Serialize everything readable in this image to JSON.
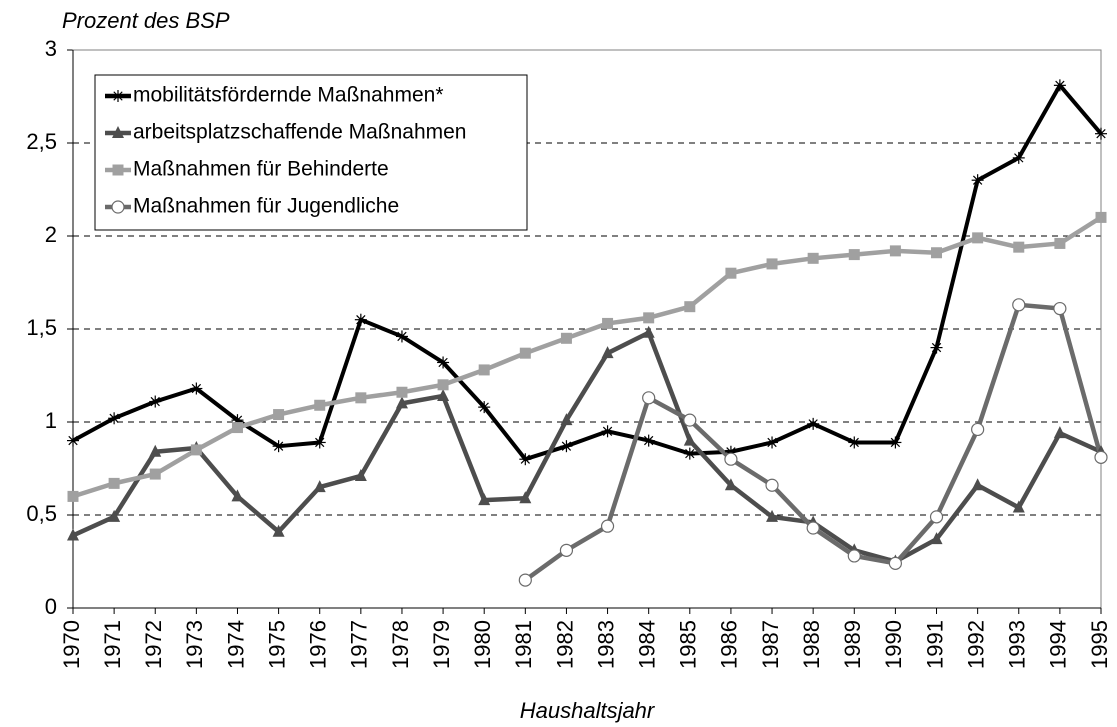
{
  "chart_data": {
    "type": "line",
    "y_label": "Prozent des BSP",
    "x_label": "Haushaltsjahr",
    "categories": [
      "1970",
      "1971",
      "1972",
      "1973",
      "1974",
      "1975",
      "1976",
      "1977",
      "1978",
      "1979",
      "1980",
      "1981",
      "1982",
      "1983",
      "1984",
      "1985",
      "1986",
      "1987",
      "1988",
      "1989",
      "1990",
      "1991",
      "1992",
      "1993",
      "1994",
      "1995"
    ],
    "ylim": [
      0,
      3
    ],
    "yticks": [
      0,
      {
        "value": 0.5,
        "label": "0,5"
      },
      1,
      {
        "value": 1.5,
        "label": "1,5"
      },
      2,
      {
        "value": 2.5,
        "label": "2,5"
      },
      3
    ],
    "grid": true,
    "legend": "upper left",
    "series": [
      {
        "name": "mobilitätsfördernde Maßnahmen*",
        "color": "#000000",
        "marker": "star",
        "values": [
          0.9,
          1.02,
          1.11,
          1.18,
          1.01,
          0.87,
          0.89,
          1.55,
          1.46,
          1.32,
          1.08,
          0.8,
          0.87,
          0.95,
          0.9,
          0.83,
          0.84,
          0.89,
          0.99,
          0.89,
          0.89,
          1.4,
          2.3,
          2.42,
          2.81,
          2.55
        ]
      },
      {
        "name": "arbeitsplatzschaffende Maßnahmen",
        "color": "#4d4d4d",
        "marker": "triangle",
        "values": [
          0.39,
          0.49,
          0.84,
          0.86,
          0.6,
          0.41,
          0.65,
          0.71,
          1.1,
          1.14,
          0.58,
          0.59,
          1.01,
          1.37,
          1.48,
          0.9,
          0.66,
          0.49,
          0.46,
          0.31,
          0.25,
          0.37,
          0.66,
          0.54,
          0.94,
          0.84
        ]
      },
      {
        "name": "Maßnahmen für Behinderte",
        "color": "#a0a0a0",
        "marker": "square",
        "values": [
          0.6,
          0.67,
          0.72,
          0.85,
          0.97,
          1.04,
          1.09,
          1.13,
          1.16,
          1.2,
          1.28,
          1.37,
          1.45,
          1.53,
          1.56,
          1.62,
          1.8,
          1.85,
          1.88,
          1.9,
          1.92,
          1.91,
          1.99,
          1.94,
          1.96,
          2.1
        ]
      },
      {
        "name": "Maßnahmen für Jugendliche",
        "color": "#6b6b6b",
        "marker": "circle",
        "values": [
          null,
          null,
          null,
          null,
          null,
          null,
          null,
          null,
          null,
          null,
          null,
          0.15,
          0.31,
          0.44,
          1.13,
          1.01,
          0.8,
          0.66,
          0.43,
          0.28,
          0.24,
          0.49,
          0.96,
          1.63,
          1.61,
          0.81
        ]
      }
    ]
  }
}
